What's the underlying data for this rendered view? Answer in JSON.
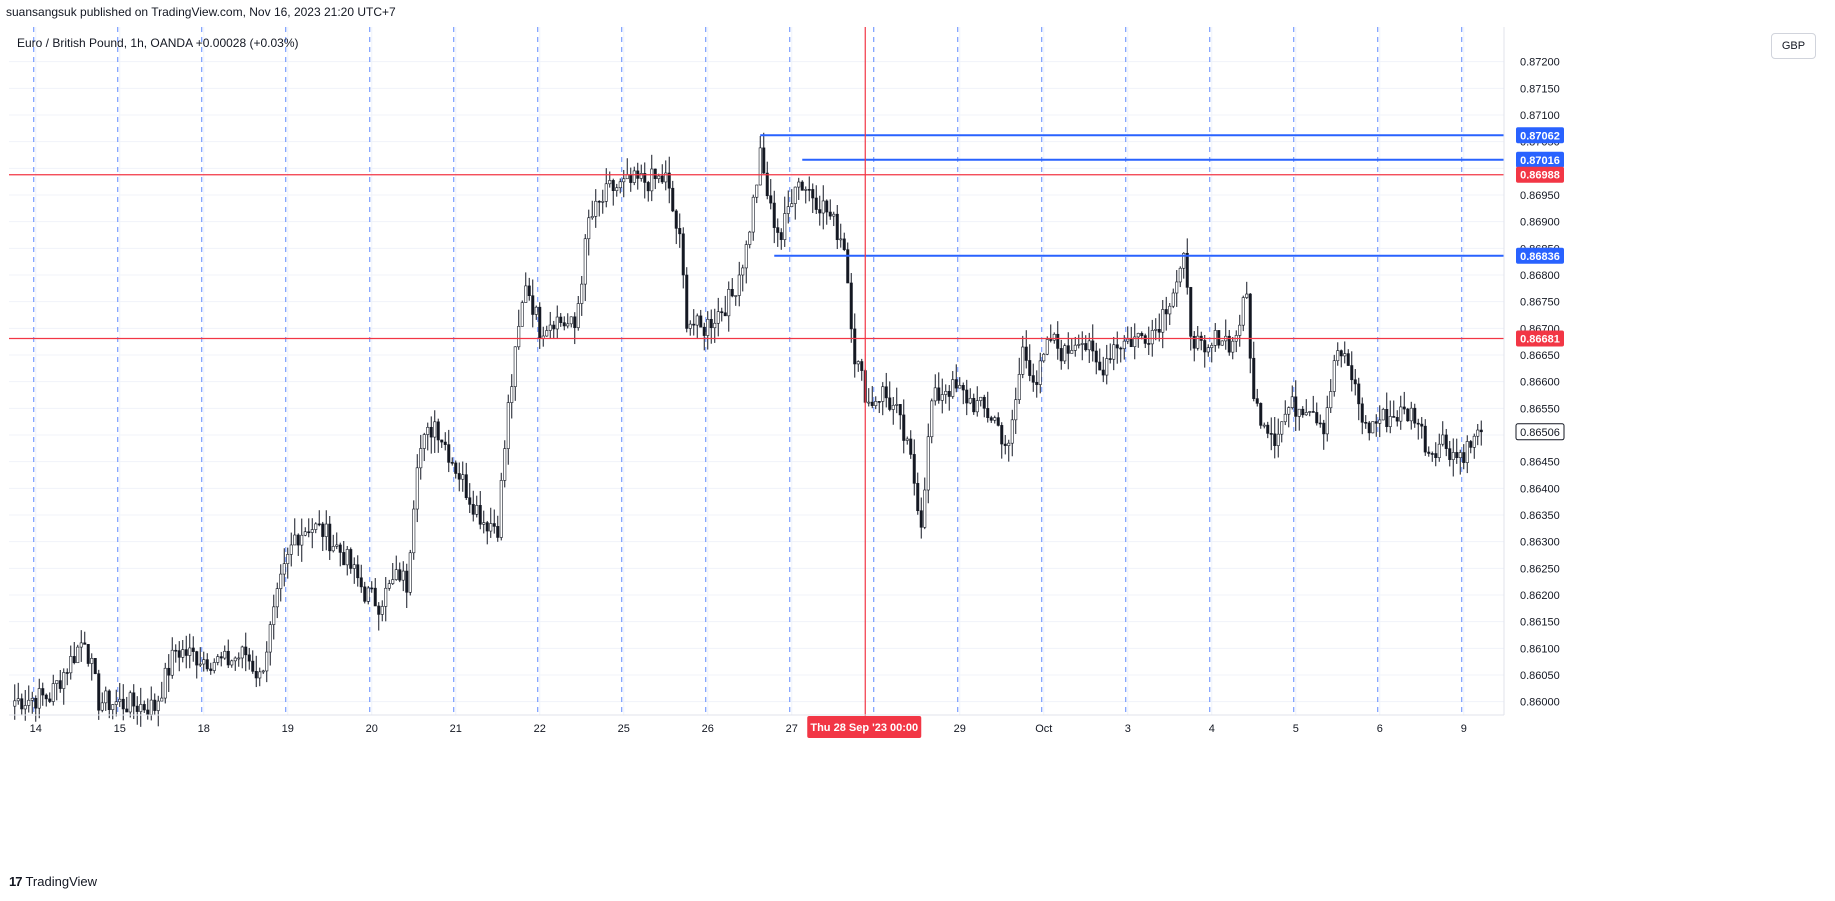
{
  "header": {
    "published_by": "suansangsuk published on TradingView.com, Nov 16, 2023 21:20 UTC+7",
    "symbol_line": "Euro / British Pound, 1h, OANDA  +0.00028 (+0.03%)",
    "currency": "GBP"
  },
  "footer": {
    "brand": "TradingView",
    "logo_glyph": "17"
  },
  "colors": {
    "candle": "#131722",
    "grid": "#f0f3fa",
    "session_line": "#2962ff",
    "red_level": "#f23645",
    "blue_level": "#2962ff",
    "crosshair": "#f23645",
    "axis_border": "#e0e3eb"
  },
  "chart_data": {
    "type": "candlestick",
    "symbol": "EURGBP",
    "interval": "1h",
    "ylim": [
      0.85975,
      0.87265
    ],
    "y_ticks": [
      "0.86000",
      "0.86050",
      "0.86100",
      "0.86150",
      "0.86200",
      "0.86250",
      "0.86300",
      "0.86350",
      "0.86400",
      "0.86450",
      "0.86500",
      "0.86550",
      "0.86600",
      "0.86650",
      "0.86700",
      "0.86750",
      "0.86800",
      "0.86850",
      "0.86900",
      "0.86950",
      "0.87000",
      "0.87050",
      "0.87100",
      "0.87150",
      "0.87200"
    ],
    "x_ticks": [
      {
        "label": "14",
        "bar": 6
      },
      {
        "label": "15",
        "bar": 30
      },
      {
        "label": "18",
        "bar": 54
      },
      {
        "label": "19",
        "bar": 78
      },
      {
        "label": "20",
        "bar": 102
      },
      {
        "label": "21",
        "bar": 126
      },
      {
        "label": "22",
        "bar": 150
      },
      {
        "label": "25",
        "bar": 174
      },
      {
        "label": "26",
        "bar": 198
      },
      {
        "label": "27",
        "bar": 222
      },
      {
        "label": "29",
        "bar": 270
      },
      {
        "label": "Oct",
        "bar": 294
      },
      {
        "label": "3",
        "bar": 318
      },
      {
        "label": "4",
        "bar": 342
      },
      {
        "label": "5",
        "bar": 366
      },
      {
        "label": "6",
        "bar": 390
      },
      {
        "label": "9",
        "bar": 414
      }
    ],
    "session_lines_bar": [
      6,
      30,
      54,
      78,
      102,
      126,
      150,
      174,
      198,
      222,
      246,
      270,
      294,
      318,
      342,
      366,
      390,
      414
    ],
    "bar_count": 420,
    "price_levels": [
      {
        "price": 0.87062,
        "label": "0.87062",
        "color": "blue",
        "from_bar": 213
      },
      {
        "price": 0.87016,
        "label": "0.87016",
        "color": "blue",
        "from_bar": 225
      },
      {
        "price": 0.86988,
        "label": "0.86988",
        "color": "red",
        "from_bar": 0
      },
      {
        "price": 0.86836,
        "label": "0.86836",
        "color": "blue",
        "from_bar": 217
      },
      {
        "price": 0.86681,
        "label": "0.86681",
        "color": "red",
        "from_bar": 0
      }
    ],
    "last_price": {
      "price": 0.86506,
      "label": "0.86506"
    },
    "crosshair": {
      "bar": 243,
      "label": "Thu 28 Sep '23",
      "time": "00:00"
    },
    "path_anchors": [
      [
        0,
        0.86002
      ],
      [
        10,
        0.8601
      ],
      [
        20,
        0.86122
      ],
      [
        24,
        0.86001
      ],
      [
        40,
        0.8599
      ],
      [
        46,
        0.86097
      ],
      [
        54,
        0.86081
      ],
      [
        60,
        0.86074
      ],
      [
        66,
        0.8609
      ],
      [
        70,
        0.86045
      ],
      [
        76,
        0.8622
      ],
      [
        80,
        0.8631
      ],
      [
        84,
        0.8633
      ],
      [
        88,
        0.8632
      ],
      [
        94,
        0.86275
      ],
      [
        100,
        0.86205
      ],
      [
        104,
        0.86185
      ],
      [
        110,
        0.8624
      ],
      [
        112,
        0.8622
      ],
      [
        115,
        0.8646
      ],
      [
        120,
        0.86525
      ],
      [
        126,
        0.8644
      ],
      [
        130,
        0.86385
      ],
      [
        134,
        0.8634
      ],
      [
        138,
        0.8633
      ],
      [
        141,
        0.8655
      ],
      [
        146,
        0.8679
      ],
      [
        150,
        0.867
      ],
      [
        154,
        0.8672
      ],
      [
        160,
        0.867
      ],
      [
        164,
        0.869
      ],
      [
        170,
        0.8696
      ],
      [
        178,
        0.86975
      ],
      [
        186,
        0.8698
      ],
      [
        190,
        0.8686
      ],
      [
        192,
        0.8672
      ],
      [
        196,
        0.86695
      ],
      [
        201,
        0.8673
      ],
      [
        205,
        0.8676
      ],
      [
        209,
        0.8685
      ],
      [
        213,
        0.8702
      ],
      [
        216,
        0.8692
      ],
      [
        219,
        0.8687
      ],
      [
        223,
        0.8698
      ],
      [
        227,
        0.8696
      ],
      [
        232,
        0.8692
      ],
      [
        237,
        0.8686
      ],
      [
        240,
        0.8665
      ],
      [
        244,
        0.8656
      ],
      [
        248,
        0.8658
      ],
      [
        252,
        0.8654
      ],
      [
        256,
        0.8645
      ],
      [
        259,
        0.8634
      ],
      [
        262,
        0.8656
      ],
      [
        266,
        0.8659
      ],
      [
        270,
        0.8658
      ],
      [
        276,
        0.8655
      ],
      [
        280,
        0.8653
      ],
      [
        284,
        0.8647
      ],
      [
        288,
        0.8666
      ],
      [
        292,
        0.866
      ],
      [
        296,
        0.8668
      ],
      [
        300,
        0.8665
      ],
      [
        304,
        0.8669
      ],
      [
        310,
        0.8662
      ],
      [
        314,
        0.8667
      ],
      [
        320,
        0.8668
      ],
      [
        326,
        0.867
      ],
      [
        330,
        0.8676
      ],
      [
        334,
        0.8682
      ],
      [
        336,
        0.867
      ],
      [
        340,
        0.8664
      ],
      [
        344,
        0.8669
      ],
      [
        348,
        0.8667
      ],
      [
        352,
        0.8676
      ],
      [
        354,
        0.8656
      ],
      [
        360,
        0.865
      ],
      [
        364,
        0.8655
      ],
      [
        370,
        0.8656
      ],
      [
        374,
        0.8652
      ],
      [
        378,
        0.8666
      ],
      [
        382,
        0.8661
      ],
      [
        386,
        0.8651
      ],
      [
        390,
        0.8653
      ],
      [
        396,
        0.8654
      ],
      [
        400,
        0.8654
      ],
      [
        404,
        0.8647
      ],
      [
        408,
        0.8649
      ],
      [
        412,
        0.8646
      ],
      [
        416,
        0.8648
      ],
      [
        419,
        0.86506
      ]
    ]
  }
}
